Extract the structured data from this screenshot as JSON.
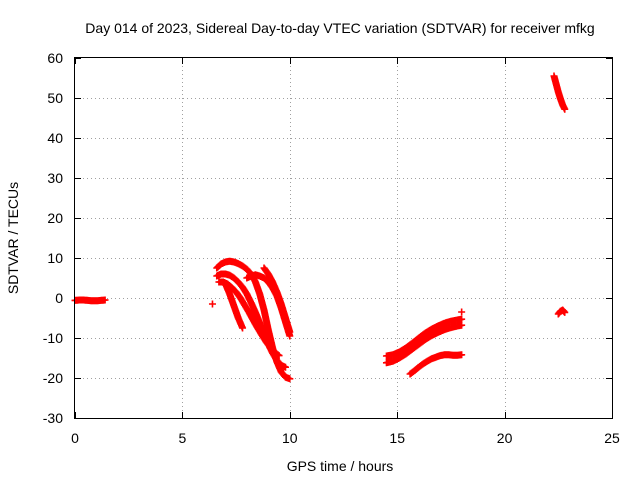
{
  "chart_data": {
    "type": "scatter",
    "title": "Day 014 of 2023, Sidereal Day-to-day VTEC variation (SDTVAR) for receiver mfkg",
    "xlabel": "GPS time / hours",
    "ylabel": "SDTVAR / TECUs",
    "xlim": [
      0,
      25
    ],
    "ylim": [
      -30,
      60
    ],
    "xticks": [
      0,
      5,
      10,
      15,
      20,
      25
    ],
    "yticks": [
      -30,
      -20,
      -10,
      0,
      10,
      20,
      30,
      40,
      50,
      60
    ],
    "xtick_labels": [
      "0",
      "5",
      "10",
      "15",
      "20",
      "25"
    ],
    "ytick_labels": [
      "-30",
      "-20",
      "-10",
      "0",
      "10",
      "20",
      "30",
      "40",
      "50",
      "60"
    ],
    "grid": true,
    "marker": "+",
    "color": "#ff0000",
    "series": [
      {
        "name": "arc-1",
        "x": [
          0.0,
          0.2,
          0.4,
          0.6,
          0.8,
          1.0,
          1.2,
          1.4
        ],
        "y": [
          -0.6,
          -0.5,
          -0.5,
          -0.6,
          -0.7,
          -0.7,
          -0.6,
          -0.5
        ]
      },
      {
        "name": "arc-2",
        "x": [
          6.6,
          6.8,
          7.0,
          7.2,
          7.4,
          7.6,
          7.8,
          8.0,
          8.2,
          8.4,
          8.6,
          8.8,
          9.0,
          9.2,
          9.4,
          9.6,
          9.8,
          10.0
        ],
        "y": [
          7.5,
          8.5,
          9.0,
          9.2,
          9.0,
          8.6,
          8.0,
          7.2,
          6.0,
          4.0,
          1.0,
          -3.0,
          -8.0,
          -12.5,
          -16.0,
          -18.5,
          -19.8,
          -20.2
        ]
      },
      {
        "name": "arc-3",
        "x": [
          6.6,
          6.8,
          7.0,
          7.2,
          7.4,
          7.6,
          7.8,
          8.0,
          8.2,
          8.4,
          8.6,
          8.8,
          9.0,
          9.2,
          9.4,
          9.6,
          9.8
        ],
        "y": [
          5.5,
          6.0,
          6.0,
          5.7,
          5.0,
          4.0,
          2.7,
          1.0,
          -1.2,
          -3.6,
          -6.2,
          -9.0,
          -11.6,
          -13.8,
          -15.6,
          -16.8,
          -17.3
        ]
      },
      {
        "name": "arc-4",
        "x": [
          6.7,
          6.9,
          7.1,
          7.3,
          7.5,
          7.7,
          7.9,
          8.1,
          8.3,
          8.5,
          8.7,
          8.9,
          9.1,
          9.3,
          9.5
        ],
        "y": [
          4.0,
          4.0,
          3.5,
          2.6,
          1.5,
          0.0,
          -1.8,
          -3.6,
          -5.6,
          -7.5,
          -9.3,
          -11.0,
          -12.4,
          -13.6,
          -14.4
        ]
      },
      {
        "name": "arc-5",
        "x": [
          7.0,
          7.2,
          7.4,
          7.6,
          7.8
        ],
        "y": [
          3.5,
          1.0,
          -2.0,
          -5.0,
          -7.5
        ]
      },
      {
        "name": "arc-6",
        "x": [
          8.0,
          8.2,
          8.4,
          8.6,
          8.8,
          9.0,
          9.2,
          9.4,
          9.6,
          9.8,
          10.0
        ],
        "y": [
          5.0,
          5.5,
          5.8,
          5.5,
          5.0,
          4.0,
          2.5,
          0.5,
          -2.5,
          -6.0,
          -9.5
        ]
      },
      {
        "name": "arc-7",
        "x": [
          8.8,
          9.0,
          9.2,
          9.4,
          9.6,
          9.8,
          10.0
        ],
        "y": [
          7.5,
          6.0,
          4.0,
          1.5,
          -1.5,
          -5.0,
          -8.5
        ]
      },
      {
        "name": "arc-8",
        "x": [
          6.4
        ],
        "y": [
          -1.5
        ]
      },
      {
        "name": "arc-9",
        "x": [
          14.5,
          14.8,
          15.1,
          15.4,
          15.7,
          16.0,
          16.3,
          16.6,
          16.9,
          17.2,
          17.5,
          17.8,
          18.0
        ],
        "y": [
          -14.5,
          -14.2,
          -13.5,
          -12.5,
          -11.3,
          -10.0,
          -8.8,
          -7.8,
          -7.0,
          -6.3,
          -5.8,
          -5.5,
          -5.3
        ]
      },
      {
        "name": "arc-10",
        "x": [
          14.5,
          14.8,
          15.1,
          15.4,
          15.7,
          16.0,
          16.3,
          16.6,
          16.9,
          17.2,
          17.5,
          17.8,
          18.0
        ],
        "y": [
          -16.2,
          -15.8,
          -15.0,
          -14.0,
          -12.8,
          -11.6,
          -10.4,
          -9.4,
          -8.6,
          -7.9,
          -7.4,
          -7.0,
          -6.8
        ]
      },
      {
        "name": "arc-11",
        "x": [
          18.0
        ],
        "y": [
          -3.5
        ]
      },
      {
        "name": "arc-12",
        "x": [
          15.6,
          15.8,
          16.0,
          16.2,
          16.4,
          16.6,
          16.8,
          17.0,
          17.2,
          17.4,
          17.6,
          17.8,
          18.0
        ],
        "y": [
          -19.0,
          -18.2,
          -17.3,
          -16.5,
          -15.8,
          -15.2,
          -14.8,
          -14.4,
          -14.2,
          -14.2,
          -14.3,
          -14.3,
          -14.2
        ]
      },
      {
        "name": "arc-13",
        "x": [
          22.3,
          22.4,
          22.5,
          22.6,
          22.7,
          22.8
        ],
        "y": [
          55.5,
          53.5,
          51.5,
          49.8,
          48.3,
          47.2
        ]
      },
      {
        "name": "arc-14",
        "x": [
          22.5,
          22.6,
          22.7,
          22.8
        ],
        "y": [
          -4.0,
          -3.3,
          -3.0,
          -3.6
        ]
      }
    ]
  }
}
